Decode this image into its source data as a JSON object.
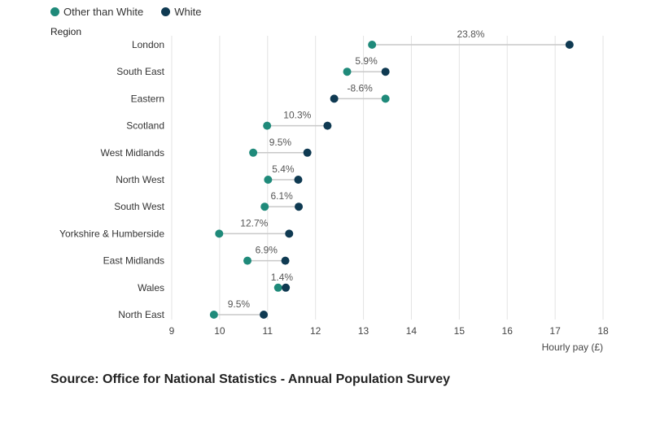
{
  "chart_data": {
    "type": "dumbbell",
    "ylabel": "Region",
    "xlabel": "Hourly pay (£)",
    "xlim": [
      9,
      18
    ],
    "xticks": [
      9,
      10,
      11,
      12,
      13,
      14,
      15,
      16,
      17,
      18
    ],
    "grid": true,
    "legend_position": "top-left",
    "series": [
      {
        "name": "Other than White",
        "color": "#1f8a7a"
      },
      {
        "name": "White",
        "color": "#0f3a52"
      }
    ],
    "categories": [
      "London",
      "South East",
      "Eastern",
      "Scotland",
      "West Midlands",
      "North West",
      "South West",
      "Yorkshire & Humberside",
      "East Midlands",
      "Wales",
      "North East"
    ],
    "other_than_white": [
      13.18,
      12.66,
      13.46,
      10.99,
      10.7,
      11.01,
      10.94,
      9.99,
      10.58,
      11.22,
      9.88
    ],
    "white": [
      17.3,
      13.46,
      12.39,
      12.25,
      11.83,
      11.64,
      11.65,
      11.45,
      11.37,
      11.38,
      10.92
    ],
    "gap_labels": [
      "23.8%",
      "5.9%",
      "-8.6%",
      "10.3%",
      "9.5%",
      "5.4%",
      "6.1%",
      "12.7%",
      "6.9%",
      "1.4%",
      "9.5%"
    ]
  },
  "legend": {
    "other_label": "Other than White",
    "white_label": "White"
  },
  "source": "Source: Office for National Statistics - Annual Population Survey"
}
